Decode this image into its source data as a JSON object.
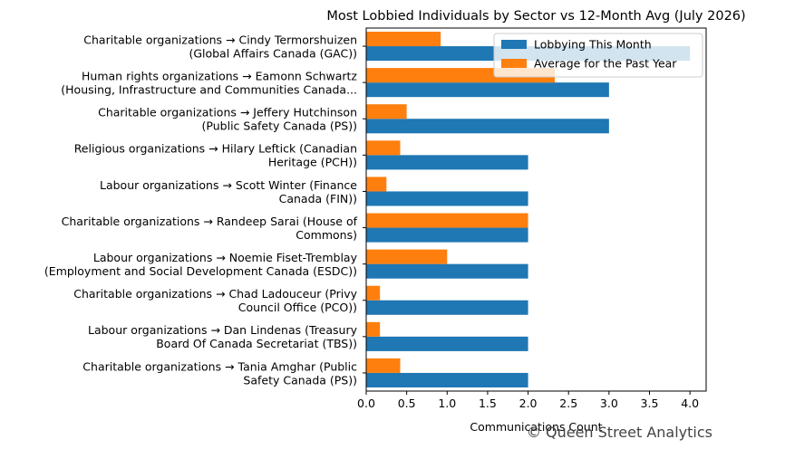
{
  "chart_data": {
    "type": "bar",
    "orientation": "horizontal",
    "title": "Most Lobbied Individuals by Sector vs 12-Month Avg (July 2026)",
    "xlabel": "Communications Count",
    "ylabel": "",
    "xlim": [
      0,
      4.2
    ],
    "xticks": [
      "0.0",
      "0.5",
      "1.0",
      "1.5",
      "2.0",
      "2.5",
      "3.0",
      "3.5",
      "4.0"
    ],
    "xtick_values": [
      0,
      0.5,
      1.0,
      1.5,
      2.0,
      2.5,
      3.0,
      3.5,
      4.0
    ],
    "grid": false,
    "legend_position": "top-right",
    "categories": [
      [
        "Charitable organizations → Cindy Termorshuizen",
        "(Global Affairs Canada (GAC))"
      ],
      [
        "Human rights organizations → Eamonn Schwartz",
        "(Housing, Infrastructure and Communities Canada..."
      ],
      [
        "Charitable organizations → Jeffery Hutchinson",
        "(Public Safety Canada (PS))"
      ],
      [
        "Religious organizations → Hilary Leftick (Canadian",
        "Heritage (PCH))"
      ],
      [
        "Labour organizations → Scott Winter (Finance",
        "Canada (FIN))"
      ],
      [
        "Charitable organizations → Randeep Sarai (House of",
        "Commons)"
      ],
      [
        "Labour organizations → Noemie Fiset-Tremblay",
        "(Employment and Social Development Canada (ESDC))"
      ],
      [
        "Charitable organizations → Chad  Ladouceur (Privy",
        "Council Office (PCO))"
      ],
      [
        "Labour organizations → Dan Lindenas (Treasury",
        "Board Of Canada Secretariat (TBS))"
      ],
      [
        "Charitable organizations → Tania Amghar (Public",
        "Safety Canada (PS))"
      ]
    ],
    "series": [
      {
        "name": "Lobbying This Month",
        "color": "#1f77b4",
        "values": [
          4,
          3,
          3,
          2,
          2,
          2,
          2,
          2,
          2,
          2
        ]
      },
      {
        "name": "Average for the Past Year",
        "color": "#ff7f0e",
        "values": [
          0.92,
          2.33,
          0.5,
          0.42,
          0.25,
          2.0,
          1.0,
          0.17,
          0.17,
          0.42
        ]
      }
    ]
  },
  "watermark": "© Queen Street Analytics"
}
